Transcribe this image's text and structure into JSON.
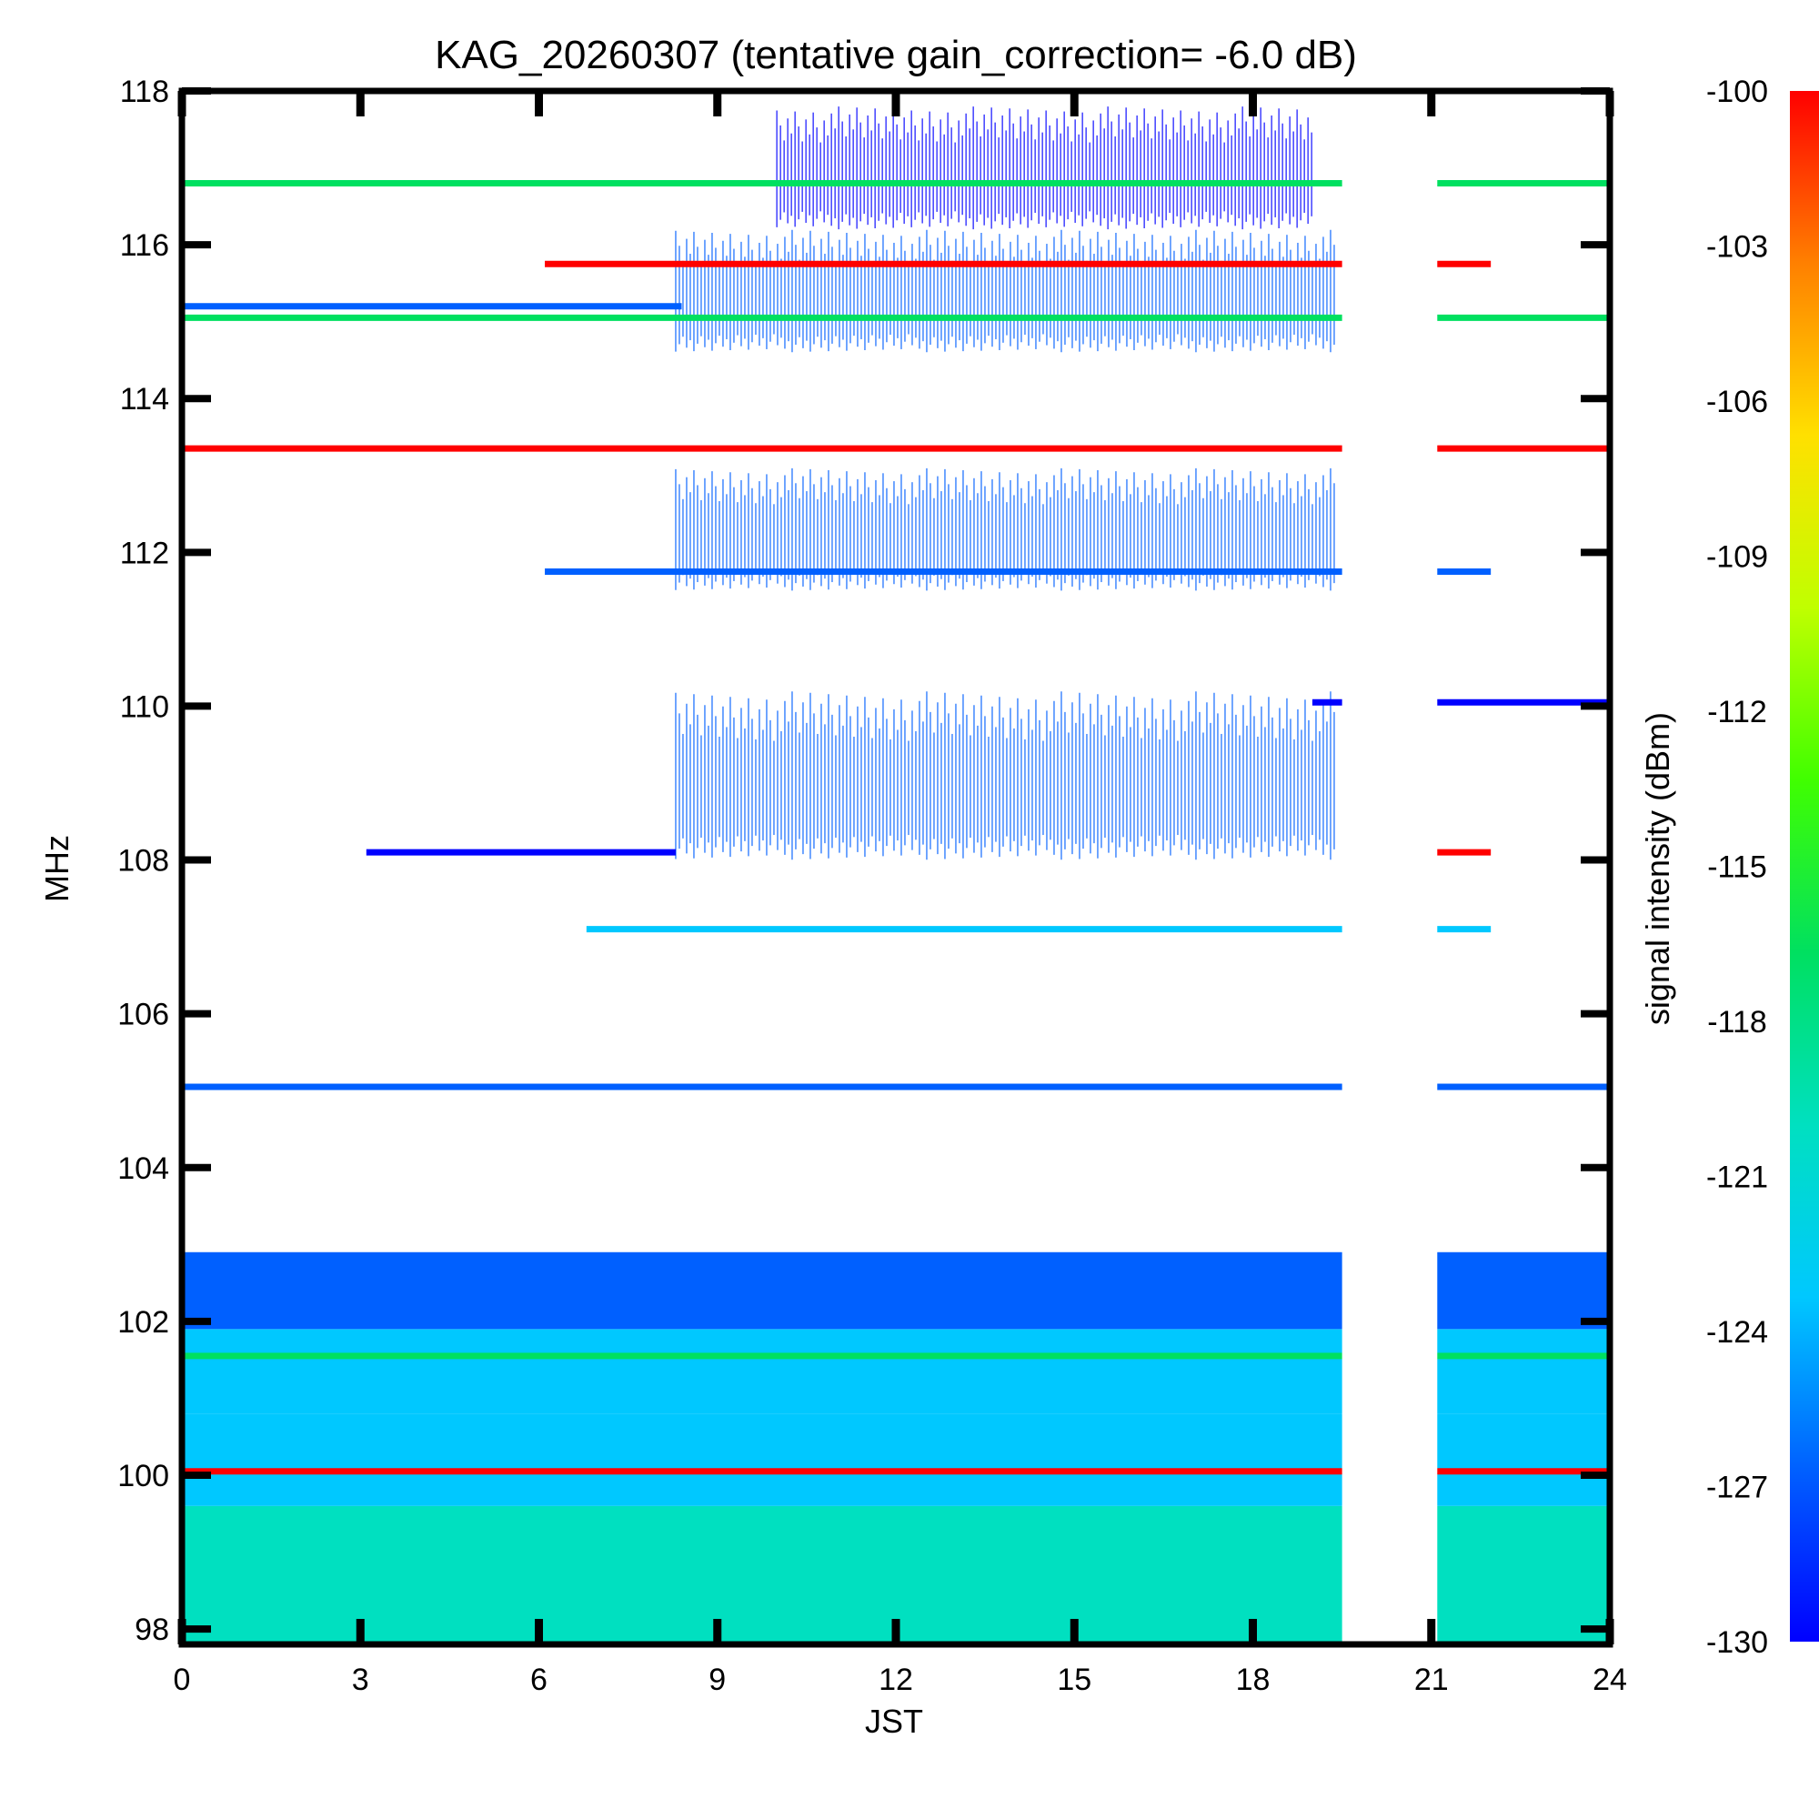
{
  "chart_data": {
    "type": "heatmap",
    "title": "KAG_20260307 (tentative gain_correction= -6.0 dB)",
    "xlabel": "JST",
    "ylabel": "MHz",
    "xlim": [
      0,
      24
    ],
    "ylim": [
      97.8,
      118
    ],
    "x_ticks": [
      "0",
      "3",
      "6",
      "9",
      "12",
      "15",
      "18",
      "21",
      "24"
    ],
    "y_ticks": [
      "98",
      "100",
      "102",
      "104",
      "106",
      "108",
      "110",
      "112",
      "114",
      "116",
      "118"
    ],
    "x_tick_values": [
      0,
      3,
      6,
      9,
      12,
      15,
      18,
      21,
      24
    ],
    "y_tick_values": [
      98,
      100,
      102,
      104,
      106,
      108,
      110,
      112,
      114,
      116,
      118
    ],
    "colorbar": {
      "label": "signal intensity (dBm)",
      "range": [
        -130,
        -100
      ],
      "ticks": [
        "-100",
        "-103",
        "-106",
        "-109",
        "-112",
        "-115",
        "-118",
        "-121",
        "-124",
        "-127",
        "-130"
      ],
      "tick_values": [
        -100,
        -103,
        -106,
        -109,
        -112,
        -115,
        -118,
        -121,
        -124,
        -127,
        -130
      ],
      "colors": [
        "#0000ff",
        "#0060ff",
        "#00c8ff",
        "#00e0c0",
        "#00e060",
        "#40ff00",
        "#c0ff00",
        "#ffe000",
        "#ff8000",
        "#ff0000"
      ]
    },
    "data_gap_jst": [
      19.5,
      21.1
    ],
    "carrier_lines": [
      {
        "freq_mhz": 116.8,
        "t_start": 0,
        "t_end": 24,
        "dbm": -118
      },
      {
        "freq_mhz": 115.75,
        "t_start": 6.1,
        "t_end": 22.0,
        "dbm": -100
      },
      {
        "freq_mhz": 115.2,
        "t_start": 0,
        "t_end": 8.4,
        "dbm": -128
      },
      {
        "freq_mhz": 115.05,
        "t_start": 0,
        "t_end": 24,
        "dbm": -118
      },
      {
        "freq_mhz": 113.35,
        "t_start": 0,
        "t_end": 24,
        "dbm": -100
      },
      {
        "freq_mhz": 111.75,
        "t_start": 6.1,
        "t_end": 22.0,
        "dbm": -127
      },
      {
        "freq_mhz": 110.05,
        "t_start": 19.0,
        "t_end": 24,
        "dbm": -129
      },
      {
        "freq_mhz": 108.1,
        "t_start": 3.1,
        "t_end": 8.3,
        "dbm": -129
      },
      {
        "freq_mhz": 108.1,
        "t_start": 21.0,
        "t_end": 22.0,
        "dbm": -100
      },
      {
        "freq_mhz": 107.1,
        "t_start": 6.8,
        "t_end": 22.0,
        "dbm": -124
      },
      {
        "freq_mhz": 105.05,
        "t_start": 0,
        "t_end": 24,
        "dbm": -127
      },
      {
        "freq_mhz": 101.55,
        "t_start": 0,
        "t_end": 24,
        "dbm": -118
      },
      {
        "freq_mhz": 100.05,
        "t_start": 0,
        "t_end": 24,
        "dbm": -100
      }
    ],
    "noise_floor_bands": [
      {
        "f_low": 97.8,
        "f_high": 99.6,
        "dbm": -119
      },
      {
        "f_low": 99.6,
        "f_high": 100.8,
        "dbm": -122
      },
      {
        "f_low": 100.8,
        "f_high": 101.9,
        "dbm": -124
      },
      {
        "f_low": 101.9,
        "f_high": 102.9,
        "dbm": -128
      }
    ],
    "activity_regions": [
      {
        "t_start": 8.3,
        "t_end": 19.4,
        "f_low": 108.0,
        "f_high": 110.2,
        "dbm": -127
      },
      {
        "t_start": 8.3,
        "t_end": 19.4,
        "f_low": 111.5,
        "f_high": 113.1,
        "dbm": -127
      },
      {
        "t_start": 8.3,
        "t_end": 19.4,
        "f_low": 114.6,
        "f_high": 116.2,
        "dbm": -127
      },
      {
        "t_start": 10.0,
        "t_end": 19.0,
        "f_low": 116.2,
        "f_high": 117.8,
        "dbm": -129
      }
    ]
  }
}
